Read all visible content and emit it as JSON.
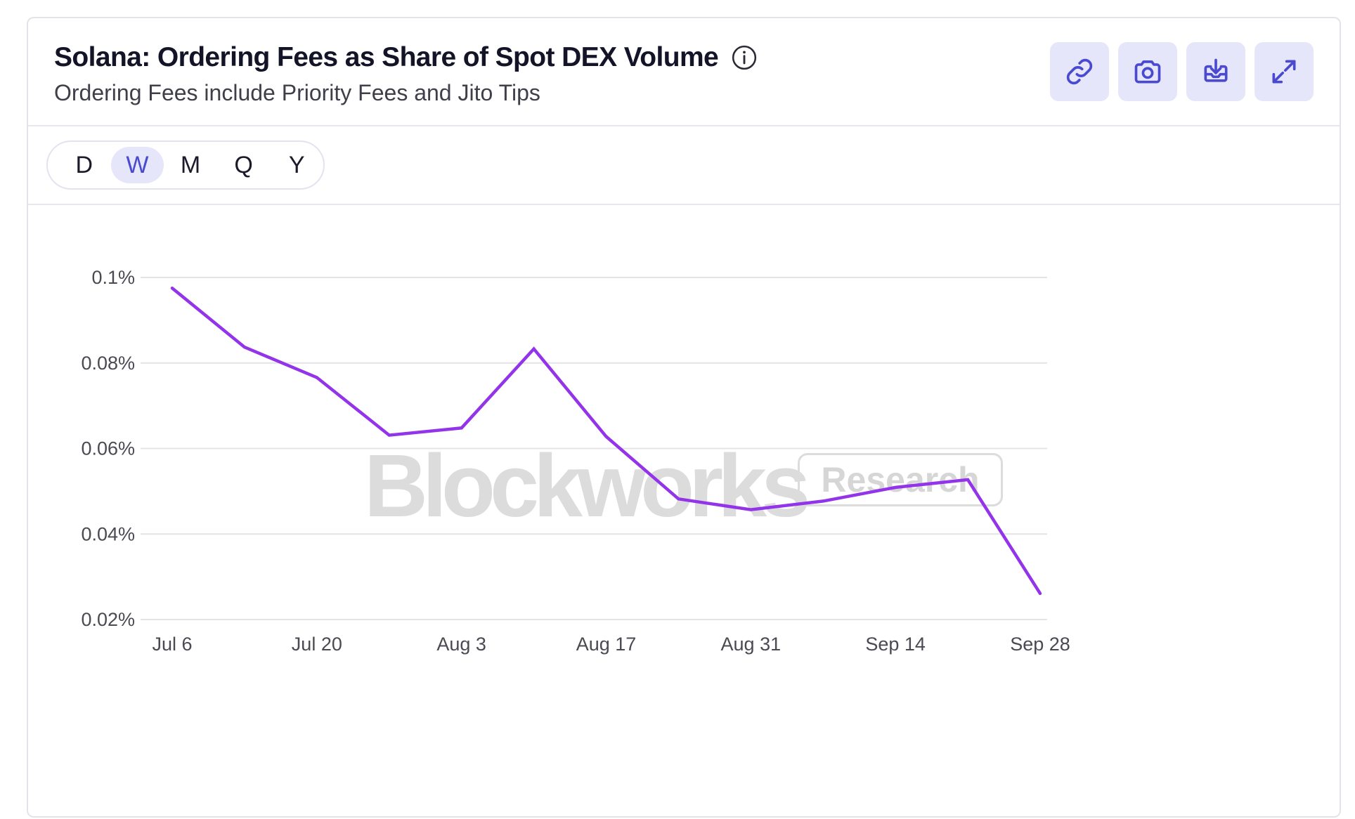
{
  "header": {
    "title": "Solana: Ordering Fees as Share of Spot DEX Volume",
    "subtitle": "Ordering Fees include Priority Fees and Jito Tips",
    "info_icon": "info-icon",
    "actions": [
      {
        "icon": "link-icon"
      },
      {
        "icon": "camera-icon"
      },
      {
        "icon": "download-icon"
      },
      {
        "icon": "expand-icon"
      }
    ]
  },
  "periods": {
    "items": [
      "D",
      "W",
      "M",
      "Q",
      "Y"
    ],
    "active": "W"
  },
  "watermark": {
    "brand": "Blockworks",
    "badge": "Research"
  },
  "colors": {
    "line": "#9333ea",
    "accent": "#4a4ad0",
    "button_bg": "#e6e6fb",
    "grid": "#e4e4e8"
  },
  "chart_data": {
    "type": "line",
    "title": "Solana: Ordering Fees as Share of Spot DEX Volume",
    "subtitle": "Ordering Fees include Priority Fees and Jito Tips",
    "x": [
      "2024-07-06",
      "2024-07-13",
      "2024-07-20",
      "2024-07-27",
      "2024-08-03",
      "2024-08-10",
      "2024-08-17",
      "2024-08-24",
      "2024-08-31",
      "2024-09-07",
      "2024-09-14",
      "2024-09-21",
      "2024-09-28"
    ],
    "x_tick_labels": [
      "Jul 6",
      "Jul 20",
      "Aug 3",
      "Aug 17",
      "Aug 31",
      "Sep 14",
      "Sep 28"
    ],
    "series": [
      {
        "values": [
          0.0975,
          0.0837,
          0.0766,
          0.0631,
          0.0648,
          0.0833,
          0.0628,
          0.0482,
          0.0457,
          0.0477,
          0.0509,
          0.0527,
          0.0261
        ]
      }
    ],
    "y_tick_labels": [
      "0.02%",
      "0.04%",
      "0.06%",
      "0.08%",
      "0.1%"
    ],
    "y_unit": "%",
    "ylim": [
      0.02,
      0.1
    ],
    "grid": true,
    "legend": "none"
  }
}
